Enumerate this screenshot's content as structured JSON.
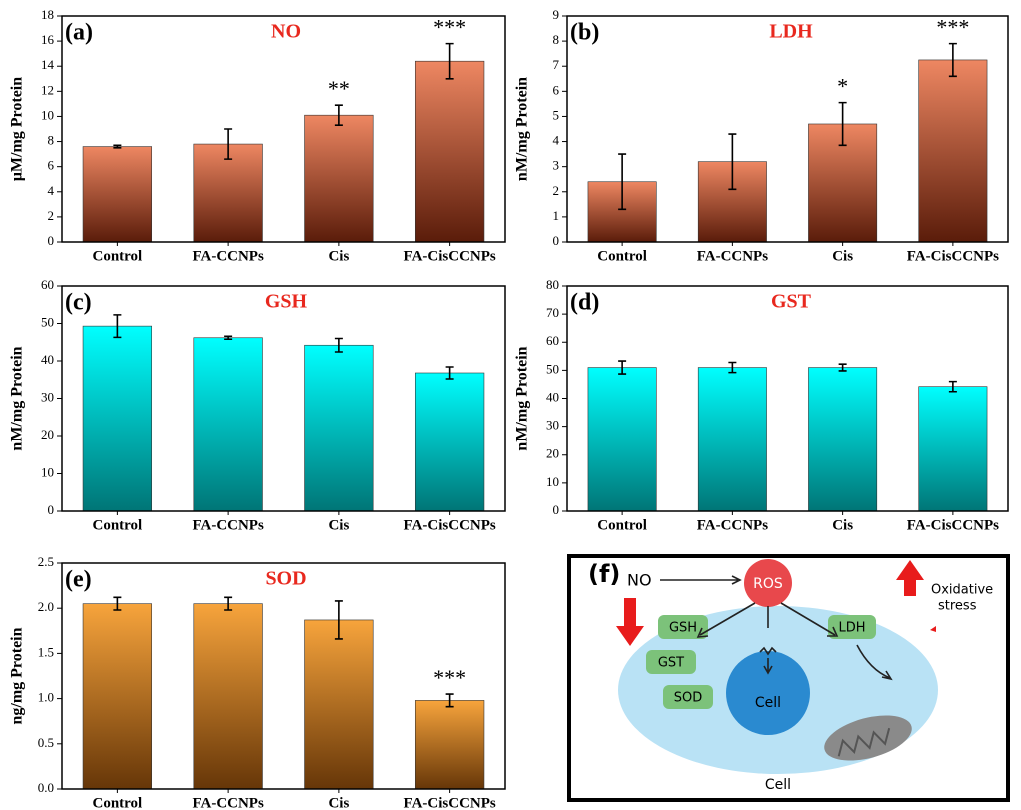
{
  "chart_data": [
    {
      "type": "bar",
      "panel": "(a)",
      "title": "NO",
      "y_label": "μM/mg Protein",
      "categories": [
        "Control",
        "FA-CCNPs",
        "Cis",
        "FA-CisCCNPs"
      ],
      "values": [
        7.6,
        7.8,
        10.1,
        14.4
      ],
      "errors": [
        0.1,
        1.2,
        0.8,
        1.4
      ],
      "annotations": [
        null,
        null,
        "**",
        "***"
      ],
      "gradient": [
        "#ee8762",
        "#5a1c0a"
      ],
      "ylim": [
        0,
        18
      ],
      "yticks": [
        0,
        2,
        4,
        6,
        8,
        10,
        12,
        14,
        16,
        18
      ]
    },
    {
      "type": "bar",
      "panel": "(b)",
      "title": "LDH",
      "y_label": "nM/mg Protein",
      "categories": [
        "Control",
        "FA-CCNPs",
        "Cis",
        "FA-CisCCNPs"
      ],
      "values": [
        2.4,
        3.2,
        4.7,
        7.25
      ],
      "errors": [
        1.1,
        1.1,
        0.85,
        0.65
      ],
      "annotations": [
        null,
        null,
        "*",
        "***"
      ],
      "gradient": [
        "#ee8762",
        "#5a1c0a"
      ],
      "ylim": [
        0,
        9
      ],
      "yticks": [
        0,
        1,
        2,
        3,
        4,
        5,
        6,
        7,
        8,
        9
      ]
    },
    {
      "type": "bar",
      "panel": "(c)",
      "title": "GSH",
      "y_label": "nM/mg Protein",
      "categories": [
        "Control",
        "FA-CCNPs",
        "Cis",
        "FA-CisCCNPs"
      ],
      "values": [
        49.3,
        46.2,
        44.2,
        36.8
      ],
      "errors": [
        3,
        0.4,
        1.8,
        1.6
      ],
      "gradient": [
        "#00ffff",
        "#007576"
      ],
      "ylim": [
        0,
        60
      ],
      "yticks": [
        0,
        10,
        20,
        30,
        40,
        50,
        60
      ]
    },
    {
      "type": "bar",
      "panel": "(d)",
      "title": "GST",
      "y_label": "nM/mg Protein",
      "categories": [
        "Control",
        "FA-CCNPs",
        "Cis",
        "FA-CisCCNPs"
      ],
      "values": [
        51,
        51,
        51,
        44.2
      ],
      "errors": [
        2.3,
        1.8,
        1.2,
        1.8
      ],
      "gradient": [
        "#00ffff",
        "#007576"
      ],
      "ylim": [
        0,
        80
      ],
      "yticks": [
        0,
        10,
        20,
        30,
        40,
        50,
        60,
        70,
        80
      ]
    },
    {
      "type": "bar",
      "panel": "(e)",
      "title": "SOD",
      "y_label": "ng/mg Protein",
      "categories": [
        "Control",
        "FA-CCNPs",
        "Cis",
        "FA-CisCCNPs"
      ],
      "values": [
        2.05,
        2.05,
        1.87,
        0.98
      ],
      "errors": [
        0.07,
        0.07,
        0.21,
        0.07
      ],
      "annotations": [
        null,
        null,
        null,
        "***"
      ],
      "gradient": [
        "#f7a43c",
        "#663608"
      ],
      "ylim": [
        0,
        2.5
      ],
      "yticks": [
        {
          "value": 0,
          "label": "0.0"
        },
        0.5,
        {
          "value": 1,
          "label": "1.0"
        },
        1.5,
        {
          "value": 2,
          "label": "2.0"
        },
        2.5
      ]
    }
  ],
  "diagram": {
    "label": "(f)",
    "source": "NO",
    "hub": "ROS",
    "antioxidants": [
      "GSH",
      "GST",
      "SOD"
    ],
    "marker": "LDH",
    "nucleus": "Cell",
    "effect": [
      "Oxidative",
      "stress"
    ],
    "cell": "Cell"
  }
}
